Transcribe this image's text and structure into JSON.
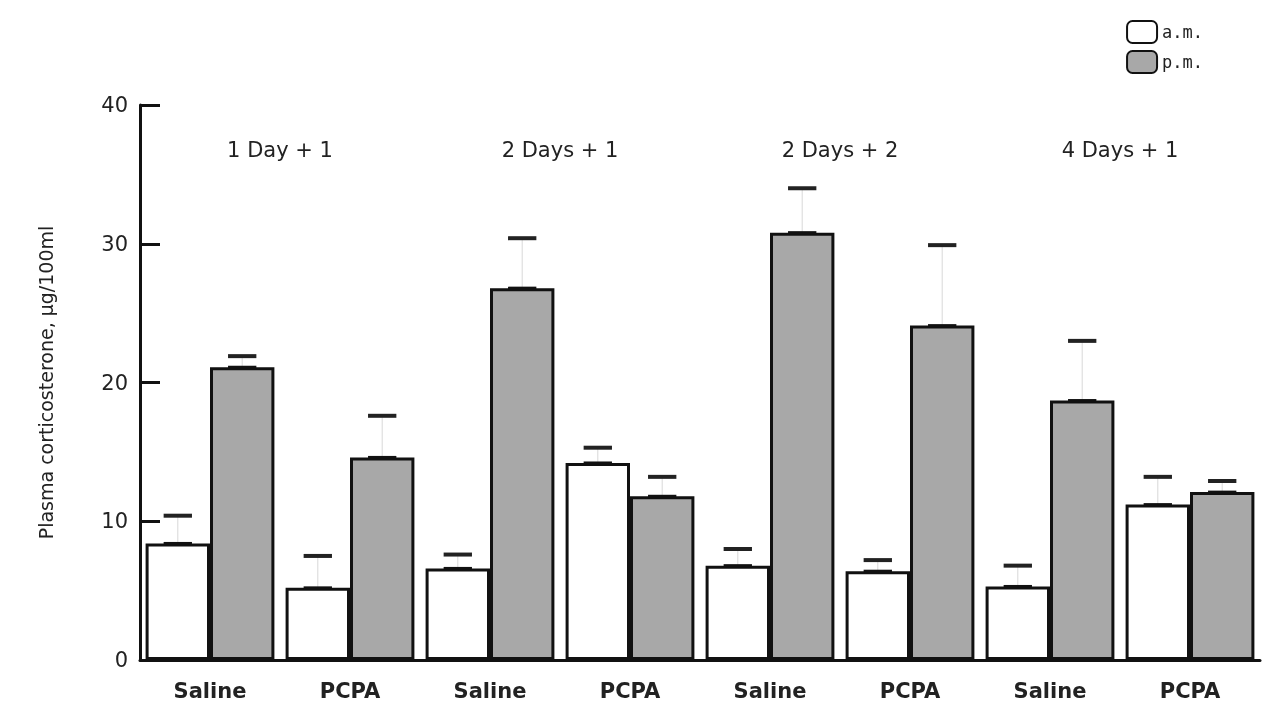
{
  "chart_data": {
    "type": "bar",
    "ylabel": "Plasma corticosterone, μg/100ml",
    "categories": [
      "Saline",
      "PCPA",
      "Saline",
      "PCPA",
      "Saline",
      "PCPA",
      "Saline",
      "PCPA"
    ],
    "series": [
      {
        "name": "a.m.",
        "color": "#ffffff",
        "values": [
          8.4,
          5.2,
          6.6,
          14.2,
          6.8,
          6.4,
          5.3,
          11.2
        ],
        "errors": [
          [
            8.4,
            10.4
          ],
          [
            5.2,
            7.5
          ],
          [
            6.6,
            7.6
          ],
          [
            14.2,
            15.3
          ],
          [
            6.8,
            8.0
          ],
          [
            6.4,
            7.2
          ],
          [
            5.3,
            6.8
          ],
          [
            11.2,
            13.2
          ]
        ]
      },
      {
        "name": "p.m.",
        "color": "#a8a8a8",
        "values": [
          21.1,
          14.6,
          26.8,
          11.8,
          30.8,
          24.1,
          18.7,
          12.1
        ],
        "errors": [
          [
            21.1,
            21.9
          ],
          [
            14.6,
            17.6
          ],
          [
            26.8,
            30.4
          ],
          [
            11.8,
            13.2
          ],
          [
            30.8,
            34.0
          ],
          [
            24.1,
            29.9
          ],
          [
            18.7,
            23.0
          ],
          [
            12.1,
            12.9
          ]
        ]
      }
    ],
    "annotations": [
      "1 Day + 1",
      "2 Days + 1",
      "2 Days + 2",
      "4 Days + 1"
    ],
    "ylim": [
      0,
      40
    ],
    "yticks": [
      0,
      10,
      20,
      30,
      40
    ],
    "grid": false,
    "legend": "top right"
  }
}
